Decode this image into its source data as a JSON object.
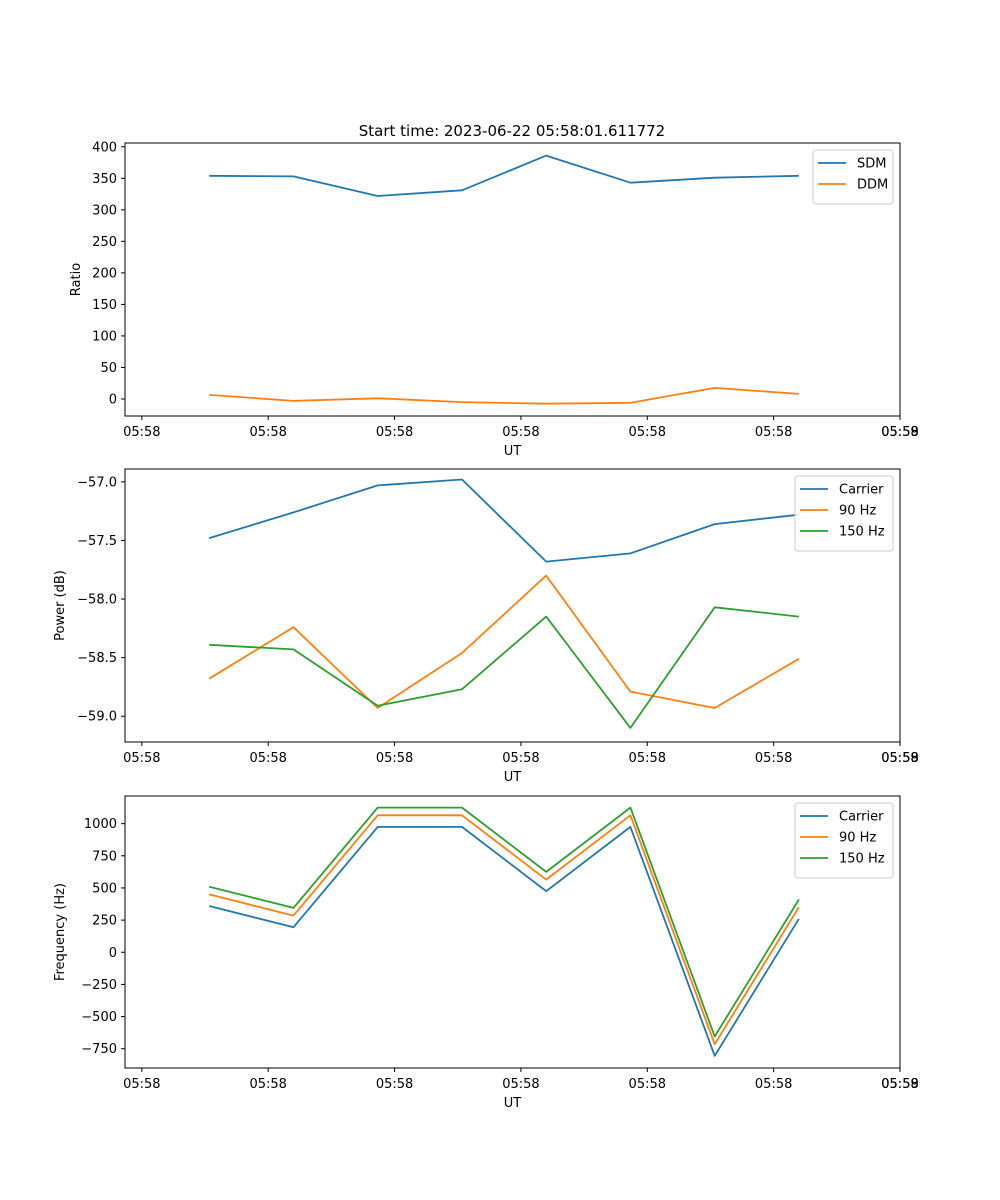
{
  "figure": {
    "title": "Start time: 2023-06-22 05:58:01.611772"
  },
  "colors": {
    "blue": "#1f77b4",
    "orange": "#ff7f0e",
    "green": "#2ca02c"
  },
  "chart_data": [
    {
      "type": "line",
      "title": "Start time: 2023-06-22 05:58:01.611772",
      "xlabel": "UT",
      "ylabel": "Ratio",
      "x_ticks": [
        "05:58",
        "05:58",
        "05:58",
        "05:58",
        "05:58",
        "05:58",
        "05:58"
      ],
      "x_tick_last": "05:59",
      "xlim": [
        0,
        9.2
      ],
      "x": [
        1,
        2,
        3,
        4,
        5,
        6,
        7,
        8
      ],
      "ylim": [
        -27,
        406
      ],
      "y_ticks": [
        0,
        50,
        100,
        150,
        200,
        250,
        300,
        350,
        400
      ],
      "legend": "top-right",
      "series": [
        {
          "name": "SDM",
          "color": "#1f77b4",
          "values": [
            354,
            353,
            322,
            331,
            386,
            343,
            351,
            354
          ]
        },
        {
          "name": "DDM",
          "color": "#ff7f0e",
          "values": [
            6.5,
            -3,
            1,
            -5,
            -7.5,
            -6,
            17.5,
            8
          ]
        }
      ]
    },
    {
      "type": "line",
      "xlabel": "UT",
      "ylabel": "Power (dB)",
      "x_ticks": [
        "05:58",
        "05:58",
        "05:58",
        "05:58",
        "05:58",
        "05:58",
        "05:58"
      ],
      "x_tick_last": "05:59",
      "xlim": [
        0,
        9.2
      ],
      "x": [
        1,
        2,
        3,
        4,
        5,
        6,
        7,
        8
      ],
      "ylim": [
        -59.22,
        -56.89
      ],
      "y_ticks": [
        -59.0,
        -58.5,
        -58.0,
        -57.5,
        -57.0
      ],
      "y_tick_labels": [
        "−59.0",
        "−58.5",
        "−58.0",
        "−57.5",
        "−57.0"
      ],
      "legend": "top-right",
      "series": [
        {
          "name": "Carrier",
          "color": "#1f77b4",
          "values": [
            -57.48,
            -57.26,
            -57.03,
            -56.98,
            -57.68,
            -57.61,
            -57.36,
            -57.28
          ]
        },
        {
          "name": "90 Hz",
          "color": "#ff7f0e",
          "values": [
            -58.68,
            -58.24,
            -58.93,
            -58.46,
            -57.8,
            -58.79,
            -58.93,
            -58.51
          ]
        },
        {
          "name": "150 Hz",
          "color": "#2ca02c",
          "values": [
            -58.39,
            -58.43,
            -58.91,
            -58.77,
            -58.15,
            -59.1,
            -58.07,
            -58.15
          ]
        }
      ]
    },
    {
      "type": "line",
      "xlabel": "UT",
      "ylabel": "Frequency (Hz)",
      "x_ticks": [
        "05:58",
        "05:58",
        "05:58",
        "05:58",
        "05:58",
        "05:58",
        "05:58"
      ],
      "x_tick_last": "05:59",
      "xlim": [
        0,
        9.2
      ],
      "x": [
        1,
        2,
        3,
        4,
        5,
        6,
        7,
        8
      ],
      "ylim": [
        -900,
        1215
      ],
      "y_ticks": [
        -750,
        -500,
        -250,
        0,
        250,
        500,
        750,
        1000
      ],
      "y_tick_labels": [
        "−750",
        "−500",
        "−250",
        "0",
        "250",
        "500",
        "750",
        "1000"
      ],
      "legend": "top-right",
      "series": [
        {
          "name": "Carrier",
          "color": "#1f77b4",
          "values": [
            360,
            195,
            975,
            975,
            475,
            975,
            -805,
            260
          ]
        },
        {
          "name": "90 Hz",
          "color": "#ff7f0e",
          "values": [
            450,
            285,
            1065,
            1065,
            565,
            1065,
            -715,
            350
          ]
        },
        {
          "name": "150 Hz",
          "color": "#2ca02c",
          "values": [
            510,
            345,
            1125,
            1125,
            625,
            1125,
            -655,
            410
          ]
        }
      ]
    }
  ]
}
